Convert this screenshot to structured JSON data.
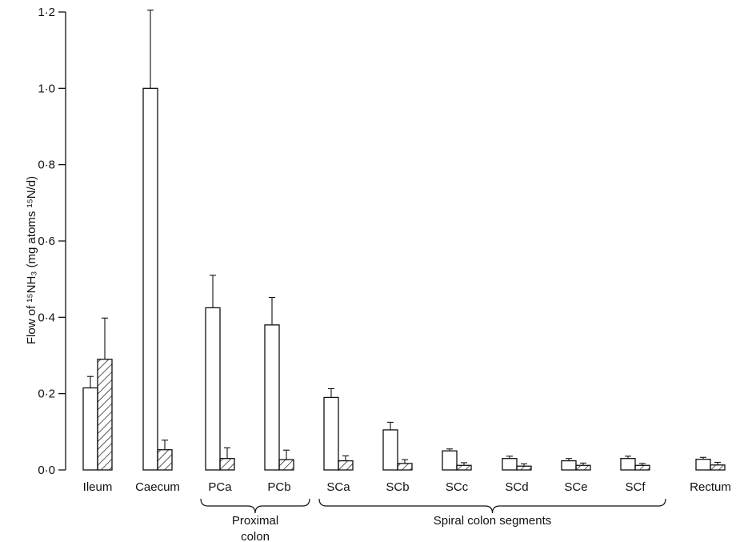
{
  "chart_data": {
    "type": "bar",
    "title": "",
    "xlabel": "",
    "ylabel": "Flow of ¹⁵NH₃ (mg atoms ¹⁵N/d)",
    "ylim": [
      0,
      1.2
    ],
    "yticks": [
      "0·0",
      "0·2",
      "0·4",
      "0·6",
      "0·8",
      "1·0",
      "1·2"
    ],
    "ytick_values": [
      0,
      0.2,
      0.4,
      0.6,
      0.8,
      1.0,
      1.2
    ],
    "categories": [
      "Ileum",
      "Caecum",
      "PCa",
      "PCb",
      "SCa",
      "SCb",
      "SCc",
      "SCd",
      "SCe",
      "SCf",
      "Rectum"
    ],
    "series": [
      {
        "style": "open",
        "values": [
          0.215,
          1.0,
          0.425,
          0.38,
          0.19,
          0.105,
          0.05,
          0.03,
          0.024,
          0.03,
          0.028
        ],
        "errors": [
          0.03,
          0.205,
          0.085,
          0.072,
          0.023,
          0.02,
          0.005,
          0.006,
          0.006,
          0.006,
          0.005
        ]
      },
      {
        "style": "hatched",
        "values": [
          0.29,
          0.053,
          0.03,
          0.027,
          0.024,
          0.017,
          0.012,
          0.01,
          0.012,
          0.012,
          0.013
        ],
        "errors": [
          0.108,
          0.025,
          0.028,
          0.025,
          0.013,
          0.01,
          0.007,
          0.006,
          0.006,
          0.005,
          0.007
        ]
      }
    ],
    "groups": [
      {
        "label_lines": [
          "Proximal",
          "colon"
        ],
        "from": "PCa",
        "to": "PCb"
      },
      {
        "label_lines": [
          "Spiral colon segments"
        ],
        "from": "SCa",
        "to": "SCf"
      }
    ],
    "grid": false,
    "legend": "none"
  }
}
